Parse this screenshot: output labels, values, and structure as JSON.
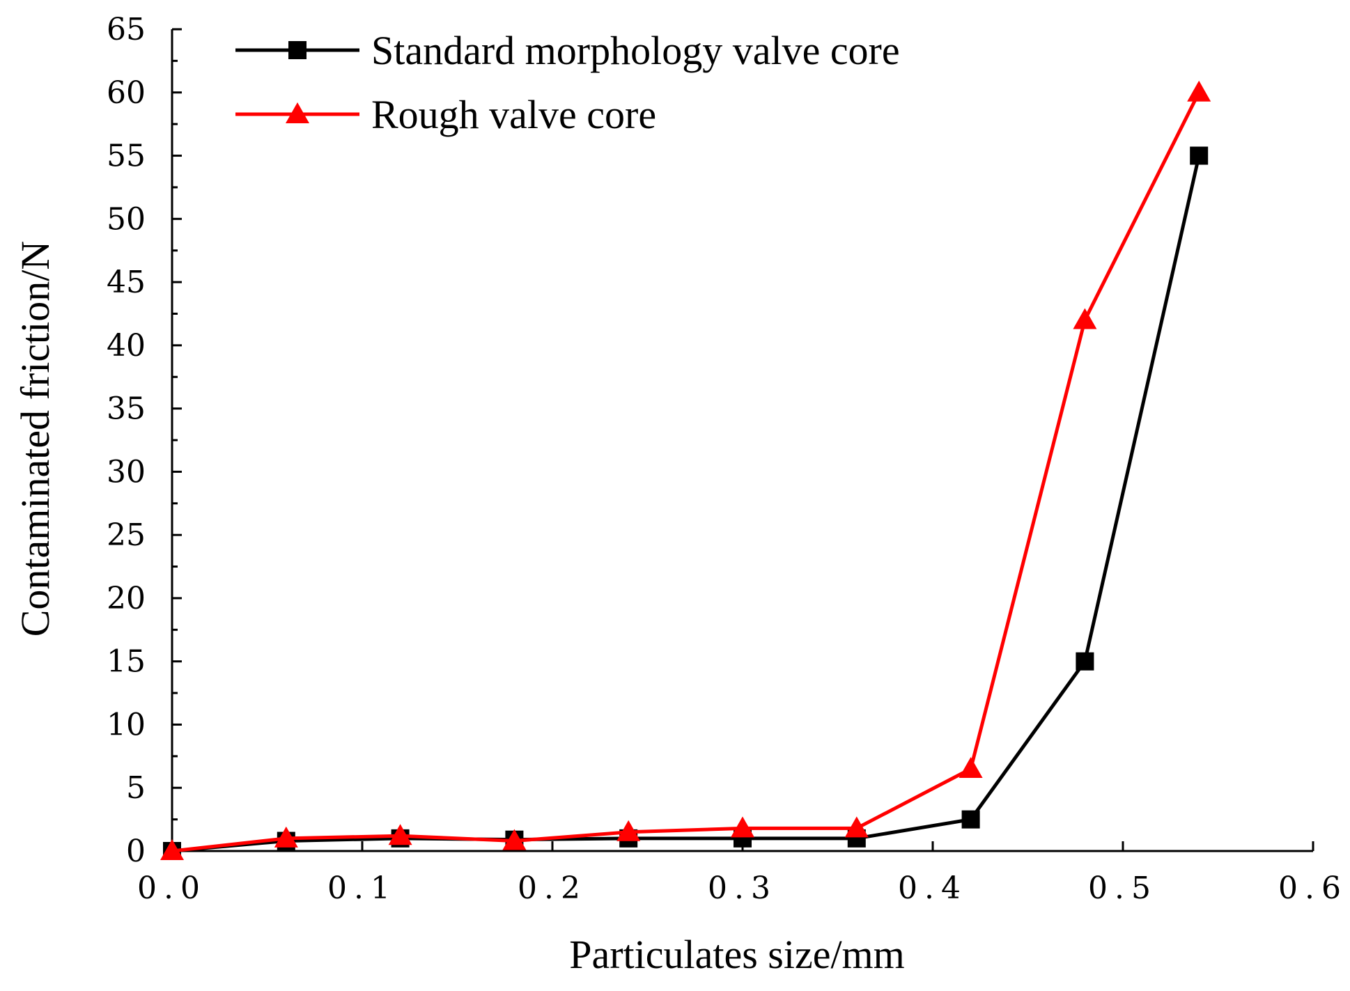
{
  "chart_data": {
    "type": "line",
    "title": "",
    "xlabel": "Particulates size/mm",
    "ylabel": "Contaminated friction/N",
    "xlim": [
      0.0,
      0.6
    ],
    "ylim": [
      0,
      65
    ],
    "x_ticks": [
      "0.0",
      "0.1",
      "0.2",
      "0.3",
      "0.4",
      "0.5",
      "0.6"
    ],
    "y_ticks": [
      "0",
      "5",
      "10",
      "15",
      "20",
      "25",
      "30",
      "35",
      "40",
      "45",
      "50",
      "55",
      "60",
      "65"
    ],
    "grid": false,
    "legend_position": "top-left",
    "series": [
      {
        "name": "Standard morphology valve core",
        "color": "#000000",
        "marker": "square",
        "x": [
          0.0,
          0.06,
          0.12,
          0.18,
          0.24,
          0.3,
          0.36,
          0.42,
          0.48,
          0.54
        ],
        "values": [
          0,
          0.8,
          1.0,
          0.9,
          1.0,
          1.0,
          1.0,
          2.5,
          15,
          55
        ]
      },
      {
        "name": "Rough valve core",
        "color": "#ff0000",
        "marker": "triangle",
        "x": [
          0.0,
          0.06,
          0.12,
          0.18,
          0.24,
          0.3,
          0.36,
          0.42,
          0.48,
          0.54
        ],
        "values": [
          0,
          1.0,
          1.2,
          0.8,
          1.5,
          1.8,
          1.8,
          6.5,
          42,
          60
        ]
      }
    ]
  }
}
